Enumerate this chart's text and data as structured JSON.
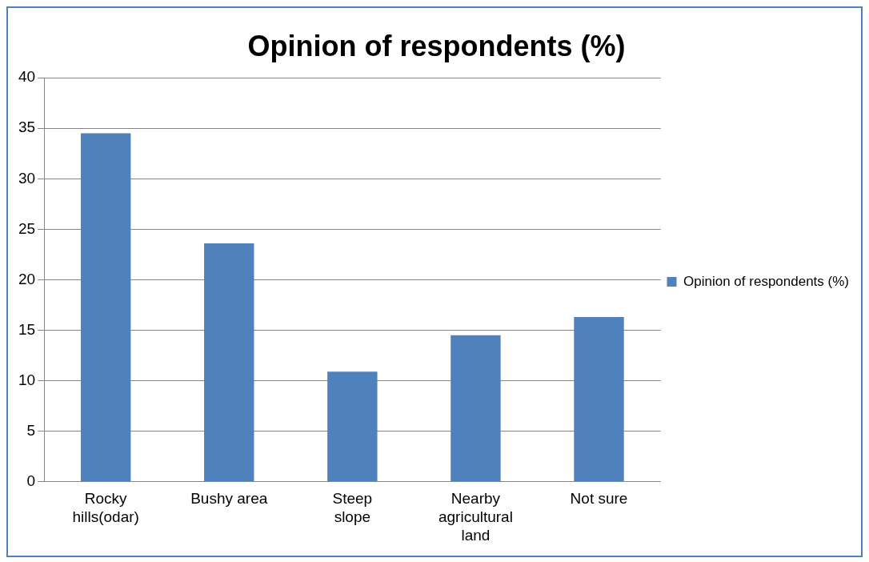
{
  "chart_data": {
    "type": "bar",
    "title": "Opinion of respondents (%)",
    "categories": [
      "Rocky hills(odar)",
      "Bushy area",
      "Steep slope",
      "Nearby agricultural land",
      "Not sure"
    ],
    "series": [
      {
        "name": "Opinion of respondents (%)",
        "color": "#4f81bd",
        "values": [
          34.5,
          23.6,
          10.9,
          14.5,
          16.3
        ]
      }
    ],
    "ylim": [
      0,
      40
    ],
    "yticks": [
      0,
      5,
      10,
      15,
      20,
      25,
      30,
      35,
      40
    ],
    "grid": "y",
    "legend": "right"
  }
}
